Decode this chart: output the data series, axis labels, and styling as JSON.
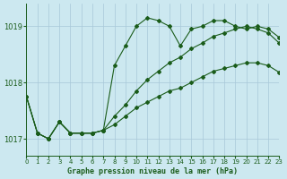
{
  "title": "Graphe pression niveau de la mer (hPa)",
  "bg_color": "#cce8f0",
  "grid_color": "#a8c8d8",
  "line_color": "#1a5c1a",
  "xlim": [
    0,
    23
  ],
  "ylim": [
    1016.7,
    1019.4
  ],
  "yticks": [
    1017,
    1018,
    1019
  ],
  "xticks": [
    0,
    1,
    2,
    3,
    4,
    5,
    6,
    7,
    8,
    9,
    10,
    11,
    12,
    13,
    14,
    15,
    16,
    17,
    18,
    19,
    20,
    21,
    22,
    23
  ],
  "series": [
    [
      1017.75,
      1017.1,
      1017.0,
      1017.3,
      1017.1,
      1017.1,
      1017.1,
      1017.15,
      1018.3,
      1018.65,
      1019.0,
      1019.15,
      1019.1,
      1019.0,
      1018.65,
      1018.95,
      1019.0,
      1019.1,
      1019.1,
      1019.0,
      1018.95,
      1019.0,
      1018.95,
      1018.8
    ],
    [
      1017.75,
      1017.1,
      1017.0,
      1017.3,
      1017.1,
      1017.1,
      1017.1,
      1017.15,
      1017.4,
      1017.6,
      1017.85,
      1018.05,
      1018.2,
      1018.35,
      1018.45,
      1018.6,
      1018.7,
      1018.82,
      1018.88,
      1018.95,
      1019.0,
      1018.95,
      1018.88,
      1018.7
    ],
    [
      1017.75,
      1017.1,
      1017.0,
      1017.3,
      1017.1,
      1017.1,
      1017.1,
      1017.15,
      1017.25,
      1017.4,
      1017.55,
      1017.65,
      1017.75,
      1017.85,
      1017.9,
      1018.0,
      1018.1,
      1018.2,
      1018.25,
      1018.3,
      1018.35,
      1018.35,
      1018.3,
      1018.18
    ]
  ]
}
